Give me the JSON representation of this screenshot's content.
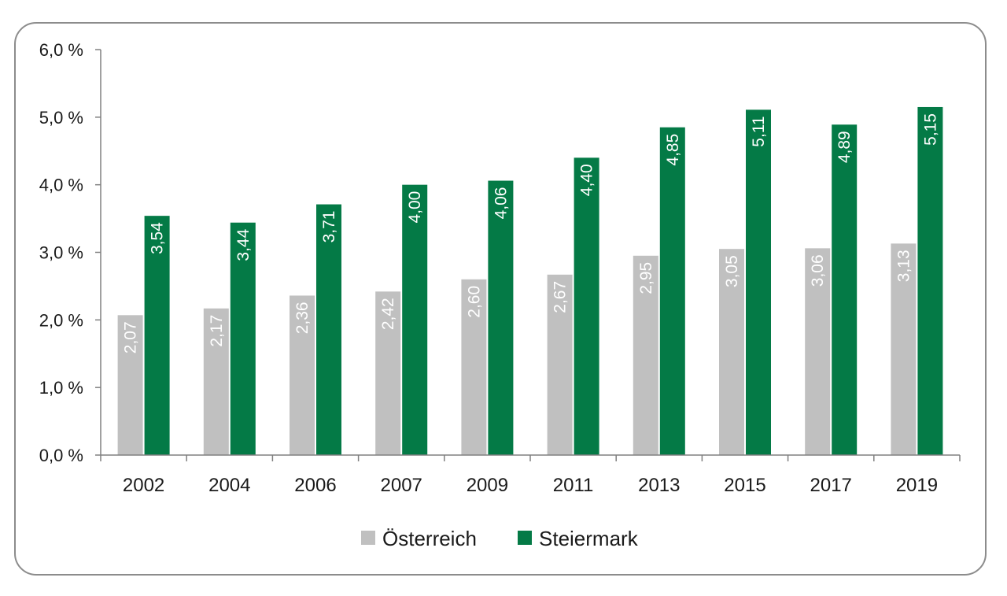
{
  "chart_data": {
    "type": "bar",
    "categories": [
      "2002",
      "2004",
      "2006",
      "2007",
      "2009",
      "2011",
      "2013",
      "2015",
      "2017",
      "2019"
    ],
    "series": [
      {
        "name": "Österreich",
        "color": "#c0c0c0",
        "values": [
          2.07,
          2.17,
          2.36,
          2.42,
          2.6,
          2.67,
          2.95,
          3.05,
          3.06,
          3.13
        ],
        "labels": [
          "2,07",
          "2,17",
          "2,36",
          "2,42",
          "2,60",
          "2,67",
          "2,95",
          "3,05",
          "3,06",
          "3,13"
        ]
      },
      {
        "name": "Steiermark",
        "color": "#047a46",
        "values": [
          3.54,
          3.44,
          3.71,
          4.0,
          4.06,
          4.4,
          4.85,
          5.11,
          4.89,
          5.15
        ],
        "labels": [
          "3,54",
          "3,44",
          "3,71",
          "4,00",
          "4,06",
          "4,40",
          "4,85",
          "5,11",
          "4,89",
          "5,15"
        ]
      }
    ],
    "y_ticks": [
      0,
      1,
      2,
      3,
      4,
      5,
      6
    ],
    "y_tick_labels": [
      "0,0 %",
      "1,0 %",
      "2,0 %",
      "3,0 %",
      "4,0 %",
      "5,0 %",
      "6,0 %"
    ],
    "ylim": [
      0,
      6
    ],
    "title": "",
    "xlabel": "",
    "ylabel": "",
    "grid": false,
    "legend_position": "bottom-center",
    "data_labels": "inside-bar-rotated",
    "axis_color": "#808080"
  }
}
